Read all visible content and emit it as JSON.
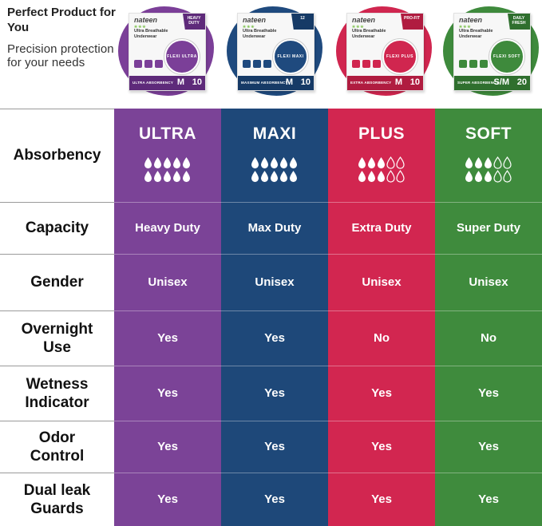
{
  "intro": {
    "title": "Perfect Product for You",
    "subtitle": "Precision protection for your needs"
  },
  "products": [
    {
      "brand": "nateen",
      "desc": "Ultra Breathable Underwear",
      "ribbon": "HEAVY DUTY",
      "circle": "FLEXI ULTRA",
      "band_label": "ULTRA ABSORBENCY",
      "size": "M",
      "count": "10",
      "color": "#7b3f98",
      "dark": "#5e2a7a"
    },
    {
      "brand": "nateen",
      "desc": "Ultra Breathable Underwear",
      "ribbon": "12",
      "circle": "FLEXI MAXI",
      "band_label": "MAXIMUM ABSORBENCY",
      "size": "M",
      "count": "10",
      "color": "#1f4a7e",
      "dark": "#163a66"
    },
    {
      "brand": "nateen",
      "desc": "Ultra Breathable Underwear",
      "ribbon": "PRO-FIT",
      "circle": "FLEXI PLUS",
      "band_label": "EXTRA ABSORBENCY",
      "size": "M",
      "count": "10",
      "color": "#d0264f",
      "dark": "#b01c40"
    },
    {
      "brand": "nateen",
      "desc": "Ultra Breathable Underwear",
      "ribbon": "DAILY FRESH",
      "circle": "FLEXI SOFT",
      "band_label": "SUPER ABSORBENCY",
      "size": "S/M",
      "count": "20",
      "color": "#3e8a3c",
      "dark": "#2f6f2e"
    }
  ],
  "rows": [
    {
      "key": "absorbency",
      "label": "Absorbency"
    },
    {
      "key": "capacity",
      "label": "Capacity"
    },
    {
      "key": "gender",
      "label": "Gender"
    },
    {
      "key": "overnight",
      "label": "Overnight Use"
    },
    {
      "key": "wetness",
      "label": "Wetness Indicator"
    },
    {
      "key": "odor",
      "label": "Odor Control"
    },
    {
      "key": "leak",
      "label": "Dual leak Guards"
    }
  ],
  "columns": [
    {
      "name": "ULTRA",
      "color": "#7b4397",
      "drops_filled": 5,
      "drops_total": 6,
      "capacity": "Heavy Duty",
      "gender": "Unisex",
      "overnight": "Yes",
      "wetness": "Yes",
      "odor": "Yes",
      "leak": "Yes"
    },
    {
      "name": "MAXI",
      "color": "#1e4879",
      "drops_filled": 5,
      "drops_total": 6,
      "capacity": "Max Duty",
      "gender": "Unisex",
      "overnight": "Yes",
      "wetness": "Yes",
      "odor": "Yes",
      "leak": "Yes"
    },
    {
      "name": "PLUS",
      "color": "#d22650",
      "drops_filled": 3,
      "drops_total": 6,
      "capacity": "Extra Duty",
      "gender": "Unisex",
      "overnight": "No",
      "wetness": "Yes",
      "odor": "Yes",
      "leak": "Yes"
    },
    {
      "name": "SOFT",
      "color": "#3f8b3d",
      "drops_filled": 3,
      "drops_total": 6,
      "capacity": "Super Duty",
      "gender": "Unisex",
      "overnight": "No",
      "wetness": "Yes",
      "odor": "Yes",
      "leak": "Yes"
    }
  ]
}
